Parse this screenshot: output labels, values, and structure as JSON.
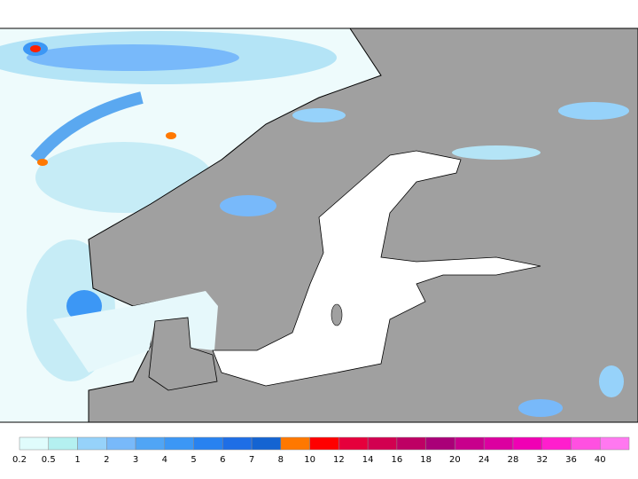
{
  "colorbar": {
    "ticks": [
      0.2,
      0.5,
      1,
      2,
      3,
      4,
      5,
      6,
      7,
      8,
      10,
      12,
      14,
      16,
      18,
      20,
      24,
      28,
      32,
      36,
      40
    ],
    "colors": [
      "#e0fcfc",
      "#b4f0f0",
      "#96d2fa",
      "#78b9fa",
      "#50a5f5",
      "#3c97f5",
      "#2882f0",
      "#1e6ee6",
      "#1464d2",
      "#ff7800",
      "#ff0000",
      "#e6003c",
      "#d20050",
      "#be0064",
      "#aa0078",
      "#c8008c",
      "#dc00a0",
      "#f000b4",
      "#ff1ecd",
      "#ff50e1",
      "#ff78f0"
    ]
  }
}
